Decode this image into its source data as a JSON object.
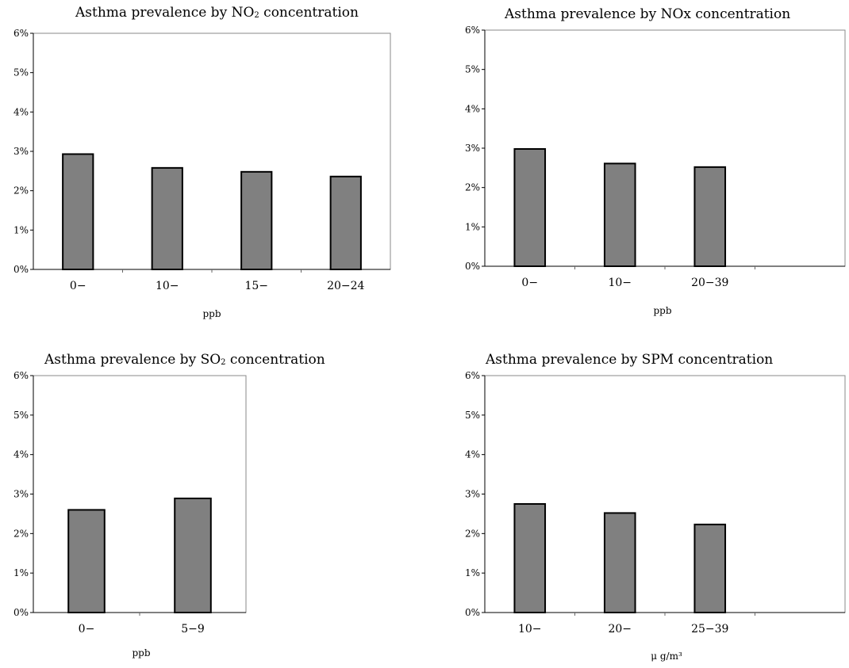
{
  "chart_data": [
    {
      "type": "bar",
      "title_pre": "Asthma prevalence by NO",
      "title_sub": "2",
      "title_post": " concentration",
      "categories": [
        "0−",
        "10−",
        "15−",
        "20−24"
      ],
      "values": [
        2.93,
        2.58,
        2.48,
        2.36
      ],
      "xlabel": "ppb",
      "ylim": [
        0,
        6
      ],
      "yticks": [
        "0%",
        "1%",
        "2%",
        "3%",
        "4%",
        "5%",
        "6%"
      ]
    },
    {
      "type": "bar",
      "title_pre": "Asthma prevalence by NOx concentration",
      "title_sub": "",
      "title_post": "",
      "categories": [
        "0−",
        "10−",
        "20−39",
        ""
      ],
      "values": [
        2.98,
        2.61,
        2.52,
        null
      ],
      "xlabel": "ppb",
      "ylim": [
        0,
        6
      ],
      "yticks": [
        "0%",
        "1%",
        "2%",
        "3%",
        "4%",
        "5%",
        "6%"
      ]
    },
    {
      "type": "bar",
      "title_pre": "Asthma prevalence by SO",
      "title_sub": "2",
      "title_post": " concentration",
      "categories": [
        "0−",
        "5−9"
      ],
      "values": [
        2.6,
        2.89
      ],
      "xlabel": "ppb",
      "ylim": [
        0,
        6
      ],
      "yticks": [
        "0%",
        "1%",
        "2%",
        "3%",
        "4%",
        "5%",
        "6%"
      ]
    },
    {
      "type": "bar",
      "title_pre": "Asthma prevalence by SPM concentration",
      "title_sub": "",
      "title_post": "",
      "categories": [
        "10−",
        "20−",
        "25−39",
        ""
      ],
      "values": [
        2.75,
        2.52,
        2.23,
        null
      ],
      "xlabel": "μ g/m³",
      "ylim": [
        0,
        6
      ],
      "yticks": [
        "0%",
        "1%",
        "2%",
        "3%",
        "4%",
        "5%",
        "6%"
      ]
    }
  ]
}
